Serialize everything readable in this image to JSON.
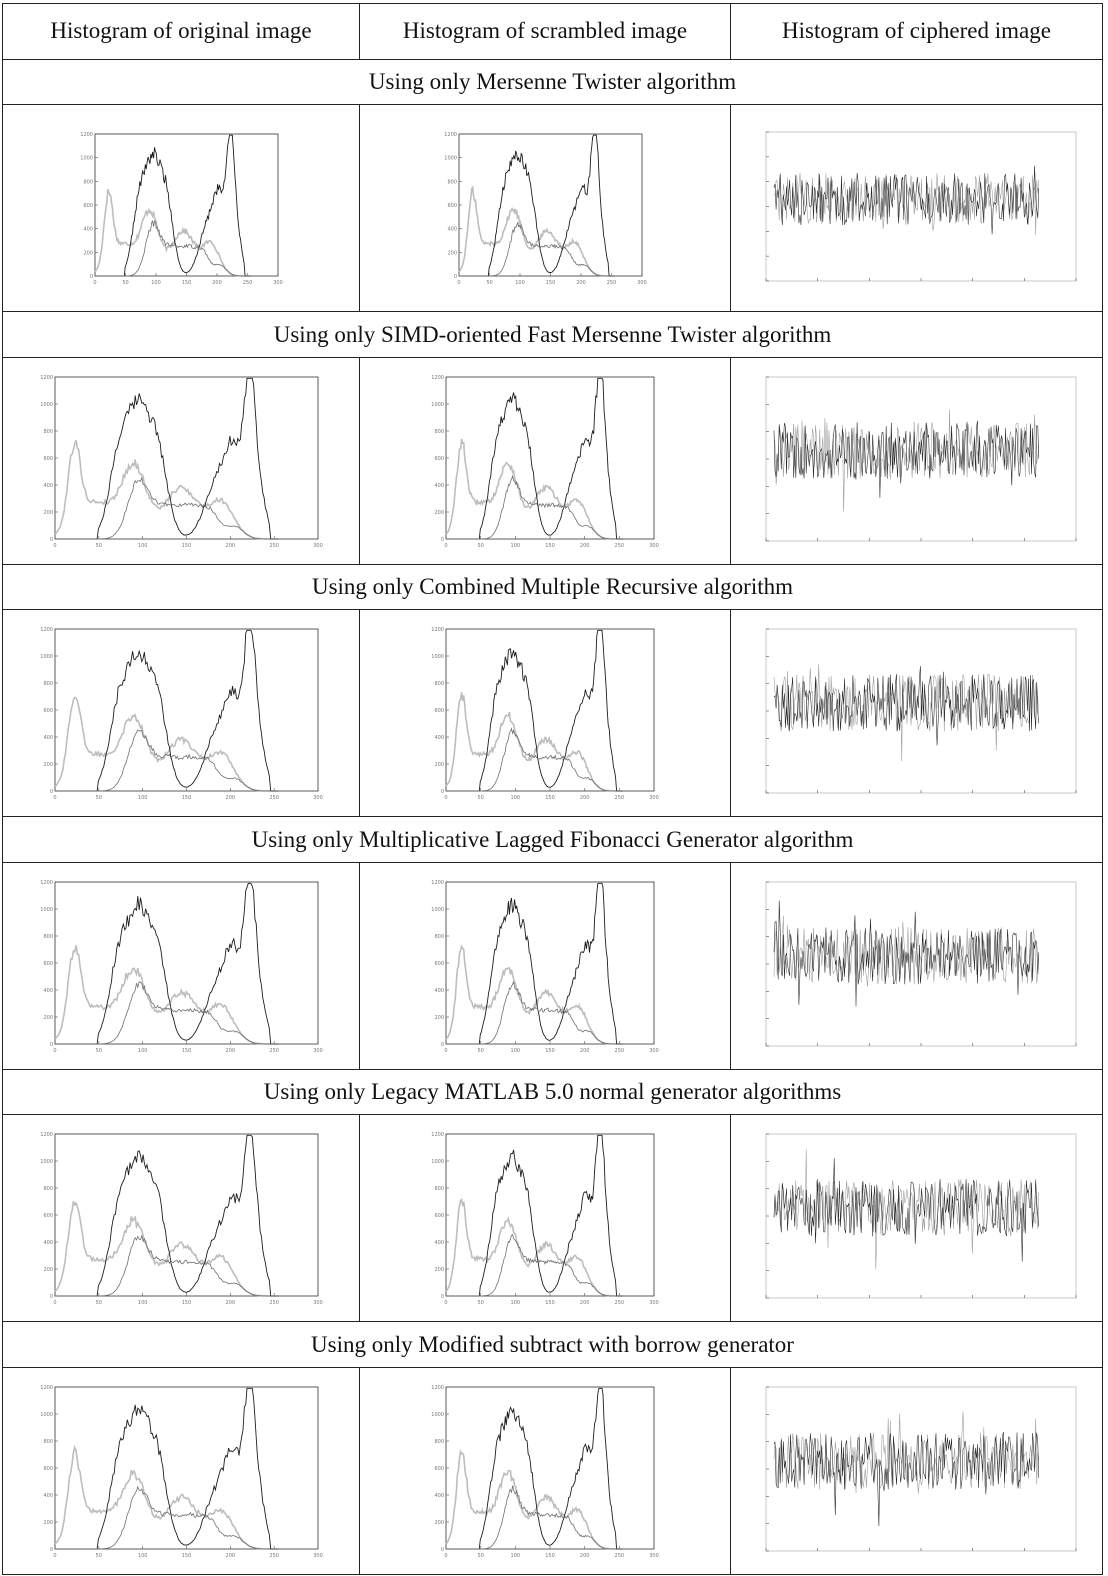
{
  "headers": [
    "Histogram of original image",
    "Histogram of scrambled image",
    "Histogram of ciphered image"
  ],
  "sections": [
    {
      "title": "Using only Mersenne Twister algorithm",
      "ylabels": [
        "1200",
        "1000",
        "800",
        "600",
        "400",
        "200",
        "0"
      ],
      "xlabels": [
        "0",
        "50",
        "100",
        "150",
        "200",
        "250",
        "300"
      ]
    },
    {
      "title": "Using only SIMD-oriented Fast Mersenne Twister algorithm",
      "ylabels": [
        "1200",
        "1000",
        "800",
        "600",
        "400",
        "200",
        "0"
      ],
      "xlabels": [
        "0",
        "50",
        "100",
        "150",
        "200",
        "250",
        "300"
      ]
    },
    {
      "title": "Using only Combined Multiple Recursive  algorithm",
      "ylabels": [
        "1200",
        "1000",
        "800",
        "600",
        "400",
        "200",
        "0"
      ],
      "xlabels": [
        "0",
        "50",
        "100",
        "150",
        "200",
        "250",
        "300"
      ]
    },
    {
      "title": "Using only Multiplicative Lagged Fibonacci Generator algorithm",
      "ylabels": [
        "1200",
        "1000",
        "800",
        "600",
        "400",
        "200",
        "0"
      ],
      "xlabels": [
        "0",
        "50",
        "100",
        "150",
        "200",
        "250",
        "300"
      ]
    },
    {
      "title": "Using only Legacy MATLAB 5.0 normal generator  algorithms",
      "ylabels": [
        "1200",
        "1000",
        "800",
        "600",
        "400",
        "200",
        "0"
      ],
      "xlabels": [
        "0",
        "50",
        "100",
        "150",
        "200",
        "250",
        "300"
      ]
    },
    {
      "title": "Using only Modified subtract with borrow generator",
      "ylabels": [
        "1200",
        "1000",
        "800",
        "600",
        "400",
        "200",
        "0"
      ],
      "xlabels": [
        "0",
        "50",
        "100",
        "150",
        "200",
        "250",
        "300"
      ]
    }
  ]
}
